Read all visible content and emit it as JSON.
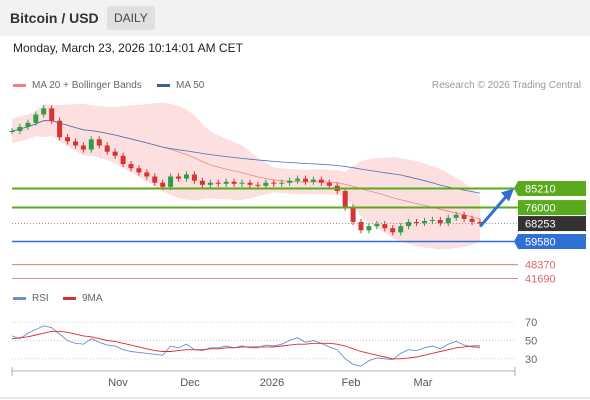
{
  "header": {
    "title": "Bitcoin / USD",
    "timeframe": "DAILY"
  },
  "datetime": "Monday, March 23, 2026 10:14:01 AM CET",
  "legend": {
    "ma20_label": "MA 20 + Bollinger Bands",
    "ma50_label": "MA 50",
    "credit": "Research © 2026 Trading Central"
  },
  "rsi_legend": {
    "rsi_label": "RSI",
    "ma_label": "9MA"
  },
  "colors": {
    "up": "#2f9e44",
    "down": "#d63333",
    "ma20": "#e88a8a",
    "band": "#fbd3d3",
    "ma50": "#4a6fb5",
    "resistance": "#5aaa1e",
    "support": "#2f6fd6",
    "extra_support": "#e06666",
    "current": "#333333",
    "rsi": "#6a8fd6",
    "rsi_ma": "#d62f2f",
    "arrow": "#2f6fd6"
  },
  "chart_data": [
    {
      "type": "candlestick",
      "title": "Bitcoin / USD",
      "timeframe": "DAILY",
      "x_tick_labels": [
        "Nov",
        "Dec",
        "2026",
        "Feb",
        "Mar"
      ],
      "ylim": [
        40000,
        128000
      ],
      "ohlc_approx_close": [
        113000,
        115000,
        117000,
        121000,
        124000,
        118000,
        110000,
        108000,
        106000,
        104000,
        109000,
        106000,
        103000,
        101000,
        97000,
        95000,
        93000,
        91000,
        88000,
        86000,
        91000,
        90000,
        92000,
        89000,
        87000,
        88000,
        87500,
        88500,
        87500,
        88000,
        87000,
        86500,
        88000,
        87500,
        88000,
        89000,
        90000,
        88500,
        89500,
        88000,
        86500,
        84000,
        76000,
        69000,
        65000,
        67000,
        68000,
        66000,
        64000,
        67000,
        69000,
        68500,
        69500,
        70000,
        68500,
        71000,
        72500,
        70500,
        69000,
        68253
      ],
      "levels": [
        {
          "label": "85210",
          "value": 85210,
          "kind": "resistance"
        },
        {
          "label": "76000",
          "value": 76000,
          "kind": "resistance"
        },
        {
          "label": "68253",
          "value": 68253,
          "kind": "current"
        },
        {
          "label": "59580",
          "value": 59580,
          "kind": "support"
        },
        {
          "label": "48370",
          "value": 48370,
          "kind": "extra_support"
        },
        {
          "label": "41690",
          "value": 41690,
          "kind": "extra_support"
        }
      ],
      "forecast_arrow": {
        "from": 68253,
        "to": 85210,
        "direction": "up"
      },
      "indicators": [
        "MA 20 + Bollinger Bands",
        "MA 50"
      ]
    },
    {
      "type": "line",
      "name": "RSI",
      "y_tick_labels": [
        "70",
        "50",
        "30"
      ],
      "ylim": [
        20,
        80
      ],
      "series": [
        {
          "name": "RSI",
          "values": [
            55,
            52,
            58,
            62,
            66,
            64,
            57,
            50,
            47,
            46,
            52,
            48,
            45,
            44,
            40,
            38,
            37,
            36,
            35,
            34,
            44,
            42,
            46,
            40,
            39,
            42,
            42,
            44,
            42,
            44,
            42,
            42,
            45,
            44,
            46,
            50,
            53,
            48,
            50,
            47,
            43,
            40,
            30,
            24,
            22,
            28,
            31,
            30,
            29,
            36,
            40,
            39,
            42,
            44,
            41,
            46,
            49,
            45,
            43,
            42
          ]
        },
        {
          "name": "9MA",
          "values": [
            52,
            53,
            54,
            56,
            58,
            60,
            60,
            59,
            57,
            55,
            54,
            52,
            50,
            49,
            47,
            45,
            43,
            41,
            39,
            38,
            38,
            39,
            40,
            40,
            40,
            41,
            41,
            42,
            42,
            43,
            43,
            43,
            43,
            43,
            44,
            45,
            46,
            46,
            47,
            47,
            47,
            46,
            44,
            41,
            38,
            36,
            34,
            32,
            30,
            30,
            31,
            32,
            34,
            36,
            38,
            40,
            42,
            43,
            44,
            44
          ]
        }
      ]
    }
  ]
}
